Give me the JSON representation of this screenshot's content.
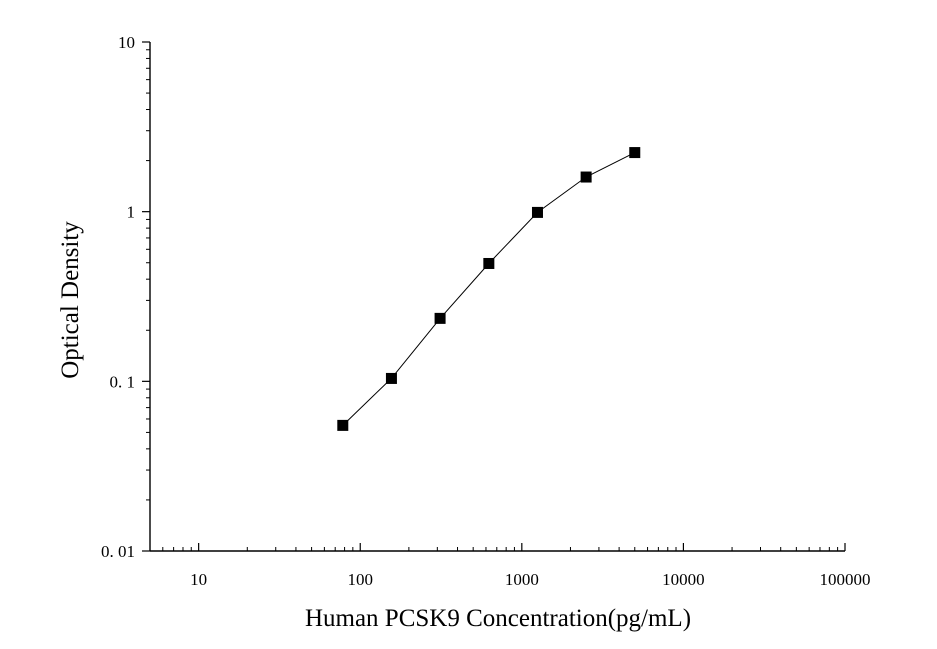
{
  "chart_data": {
    "type": "scatter",
    "xscale": "log",
    "yscale": "log",
    "xlim": [
      5,
      100000
    ],
    "ylim": [
      0.01,
      10
    ],
    "xlabel": "Human PCSK9 Concentration(pg/mL)",
    "ylabel": "Optical Density",
    "xticks": [
      {
        "value": 10,
        "label": "10"
      },
      {
        "value": 100,
        "label": "100"
      },
      {
        "value": 1000,
        "label": "1000"
      },
      {
        "value": 10000,
        "label": "10000"
      },
      {
        "value": 100000,
        "label": "100000"
      }
    ],
    "yticks": [
      {
        "value": 0.01,
        "label": "0. 01"
      },
      {
        "value": 0.1,
        "label": "0. 1"
      },
      {
        "value": 1,
        "label": "1"
      },
      {
        "value": 10,
        "label": "10"
      }
    ],
    "series": [
      {
        "x": [
          78,
          156,
          312,
          625,
          1250,
          2500,
          5000
        ],
        "y": [
          0.055,
          0.104,
          0.235,
          0.495,
          0.99,
          1.6,
          2.23
        ],
        "marker": "square",
        "connected": true,
        "color": "#000000"
      }
    ],
    "grid": false,
    "legend": "none"
  }
}
